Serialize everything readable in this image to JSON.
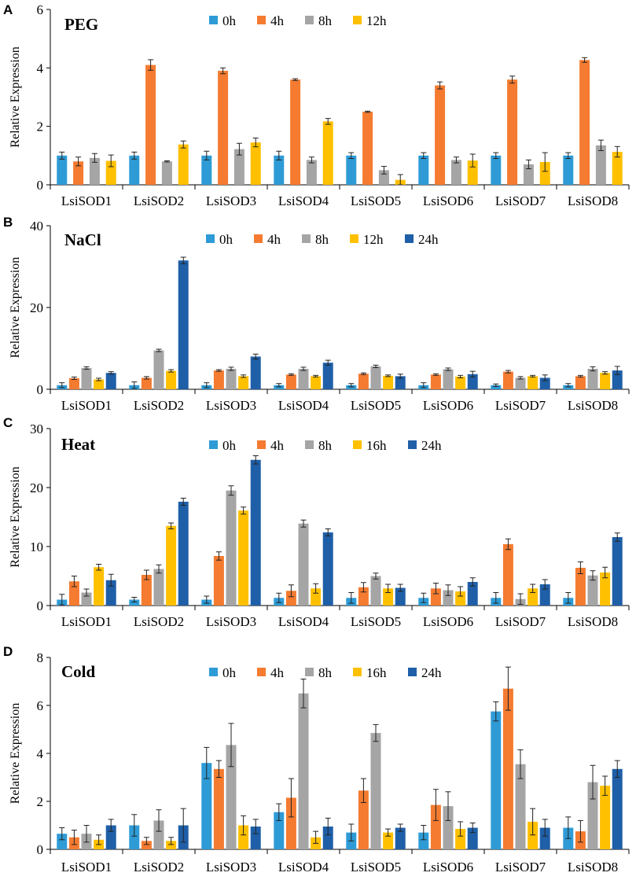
{
  "figure_name": "Relative expression of LsiSOD genes under stress treatments",
  "chart_data": [
    {
      "type": "bar",
      "panel": "A",
      "title": "PEG",
      "xlabel": "",
      "ylabel": "Relative Expression",
      "ylim": [
        0,
        6
      ],
      "yticks": [
        0,
        2,
        4,
        6
      ],
      "categories": [
        "LsiSOD1",
        "LsiSOD2",
        "LsiSOD3",
        "LsiSOD4",
        "LsiSOD5",
        "LsiSOD6",
        "LsiSOD7",
        "LsiSOD8"
      ],
      "series": [
        {
          "name": "0h",
          "color": "#2E9BD6",
          "values": [
            1.0,
            1.0,
            1.0,
            1.0,
            1.0,
            1.0,
            1.0,
            1.0
          ],
          "errors": [
            0.12,
            0.12,
            0.15,
            0.15,
            0.1,
            0.1,
            0.1,
            0.1
          ]
        },
        {
          "name": "4h",
          "color": "#F47B30",
          "values": [
            0.8,
            4.1,
            3.9,
            3.6,
            2.5,
            3.4,
            3.6,
            4.27
          ],
          "errors": [
            0.15,
            0.18,
            0.1,
            0.03,
            0.02,
            0.12,
            0.12,
            0.08
          ]
        },
        {
          "name": "8h",
          "color": "#A5A5A5",
          "values": [
            0.92,
            0.8,
            1.22,
            0.85,
            0.5,
            0.85,
            0.7,
            1.35
          ],
          "errors": [
            0.15,
            0.02,
            0.2,
            0.1,
            0.13,
            0.1,
            0.15,
            0.18
          ]
        },
        {
          "name": "12h",
          "color": "#FFC000",
          "values": [
            0.82,
            1.38,
            1.45,
            2.17,
            0.17,
            0.83,
            0.78,
            1.13
          ],
          "errors": [
            0.2,
            0.12,
            0.15,
            0.1,
            0.18,
            0.22,
            0.32,
            0.18
          ]
        }
      ]
    },
    {
      "type": "bar",
      "panel": "B",
      "title": "NaCl",
      "xlabel": "",
      "ylabel": "Relative Expression",
      "ylim": [
        0,
        40
      ],
      "yticks": [
        0,
        20,
        40
      ],
      "categories": [
        "LsiSOD1",
        "LsiSOD2",
        "LsiSOD3",
        "LsiSOD4",
        "LsiSOD5",
        "LsiSOD6",
        "LsiSOD7",
        "LsiSOD8"
      ],
      "series": [
        {
          "name": "0h",
          "color": "#2E9BD6",
          "values": [
            1.0,
            1.0,
            1.0,
            1.0,
            1.0,
            1.0,
            1.0,
            1.0
          ],
          "errors": [
            0.6,
            0.8,
            0.6,
            0.4,
            0.4,
            0.6,
            0.3,
            0.4
          ]
        },
        {
          "name": "4h",
          "color": "#F47B30",
          "values": [
            2.7,
            2.8,
            4.6,
            3.6,
            3.8,
            3.6,
            4.3,
            3.2
          ],
          "errors": [
            0.3,
            0.3,
            0.2,
            0.2,
            0.2,
            0.2,
            0.3,
            0.2
          ]
        },
        {
          "name": "8h",
          "color": "#A5A5A5",
          "values": [
            5.2,
            9.5,
            5.0,
            5.0,
            5.6,
            4.9,
            2.8,
            5.0
          ],
          "errors": [
            0.3,
            0.3,
            0.4,
            0.4,
            0.3,
            0.3,
            0.3,
            0.5
          ]
        },
        {
          "name": "12h",
          "color": "#FFC000",
          "values": [
            2.4,
            4.5,
            3.2,
            3.2,
            3.3,
            3.1,
            3.2,
            4.0
          ],
          "errors": [
            0.3,
            0.3,
            0.3,
            0.2,
            0.2,
            0.3,
            0.2,
            0.3
          ]
        },
        {
          "name": "24h",
          "color": "#1F5FA8",
          "values": [
            4.0,
            31.5,
            8.0,
            6.5,
            3.2,
            3.7,
            2.8,
            4.6
          ],
          "errors": [
            0.3,
            0.8,
            0.6,
            0.6,
            0.5,
            0.7,
            0.7,
            1.0
          ]
        }
      ]
    },
    {
      "type": "bar",
      "panel": "C",
      "title": "Heat",
      "xlabel": "",
      "ylabel": "Relative Expression",
      "ylim": [
        0,
        30
      ],
      "yticks": [
        0,
        10,
        20,
        30
      ],
      "categories": [
        "LsiSOD1",
        "LsiSOD2",
        "LsiSOD3",
        "LsiSOD4",
        "LsiSOD5",
        "LsiSOD6",
        "LsiSOD7",
        "LsiSOD8"
      ],
      "series": [
        {
          "name": "0h",
          "color": "#2E9BD6",
          "values": [
            1.0,
            1.0,
            1.0,
            1.3,
            1.3,
            1.3,
            1.3,
            1.3
          ],
          "errors": [
            0.9,
            0.4,
            0.6,
            0.8,
            0.9,
            0.8,
            0.9,
            0.9
          ]
        },
        {
          "name": "4h",
          "color": "#F47B30",
          "values": [
            4.1,
            5.2,
            8.4,
            2.5,
            3.1,
            2.9,
            10.4,
            6.4
          ],
          "errors": [
            0.9,
            0.8,
            0.7,
            1.0,
            0.8,
            0.9,
            0.9,
            1.0
          ]
        },
        {
          "name": "8h",
          "color": "#A5A5A5",
          "values": [
            2.2,
            6.2,
            19.5,
            13.9,
            5.0,
            2.6,
            1.1,
            5.1
          ],
          "errors": [
            0.6,
            0.7,
            0.8,
            0.6,
            0.5,
            0.9,
            0.9,
            0.8
          ]
        },
        {
          "name": "16h",
          "color": "#FFC000",
          "values": [
            6.5,
            13.5,
            16.1,
            2.9,
            2.9,
            2.4,
            2.9,
            5.6
          ],
          "errors": [
            0.5,
            0.5,
            0.6,
            0.8,
            0.7,
            0.8,
            0.7,
            0.9
          ]
        },
        {
          "name": "24h",
          "color": "#1F5FA8",
          "values": [
            4.3,
            17.6,
            24.7,
            12.4,
            3.0,
            4.0,
            3.6,
            11.6
          ],
          "errors": [
            1.0,
            0.6,
            0.7,
            0.6,
            0.6,
            0.7,
            0.8,
            0.7
          ]
        }
      ]
    },
    {
      "type": "bar",
      "panel": "D",
      "title": "Cold",
      "xlabel": "",
      "ylabel": "Relative Expression",
      "ylim": [
        0,
        8
      ],
      "yticks": [
        0,
        2,
        4,
        6,
        8
      ],
      "categories": [
        "LsiSOD1",
        "LsiSOD2",
        "LsiSOD3",
        "LsiSOD4",
        "LsiSOD5",
        "LsiSOD6",
        "LsiSOD7",
        "LsiSOD8"
      ],
      "series": [
        {
          "name": "0h",
          "color": "#2E9BD6",
          "values": [
            0.65,
            1.0,
            3.6,
            1.55,
            0.7,
            0.7,
            5.75,
            0.9
          ],
          "errors": [
            0.25,
            0.45,
            0.65,
            0.35,
            0.35,
            0.3,
            0.4,
            0.45
          ]
        },
        {
          "name": "4h",
          "color": "#F47B30",
          "values": [
            0.5,
            0.35,
            3.35,
            2.15,
            2.45,
            1.85,
            6.7,
            0.75
          ],
          "errors": [
            0.3,
            0.15,
            0.35,
            0.8,
            0.5,
            0.65,
            0.9,
            0.45
          ]
        },
        {
          "name": "8h",
          "color": "#A5A5A5",
          "values": [
            0.65,
            1.2,
            4.35,
            6.5,
            4.85,
            1.8,
            3.55,
            2.8
          ],
          "errors": [
            0.35,
            0.45,
            0.9,
            0.6,
            0.35,
            0.6,
            0.6,
            0.7
          ]
        },
        {
          "name": "16h",
          "color": "#FFC000",
          "values": [
            0.4,
            0.35,
            1.0,
            0.5,
            0.7,
            0.85,
            1.15,
            2.65
          ],
          "errors": [
            0.2,
            0.15,
            0.4,
            0.25,
            0.15,
            0.3,
            0.55,
            0.4
          ]
        },
        {
          "name": "24h",
          "color": "#1F5FA8",
          "values": [
            1.0,
            1.0,
            0.95,
            0.95,
            0.9,
            0.9,
            0.9,
            3.35
          ],
          "errors": [
            0.25,
            0.7,
            0.3,
            0.35,
            0.15,
            0.2,
            0.35,
            0.35
          ]
        }
      ]
    }
  ]
}
